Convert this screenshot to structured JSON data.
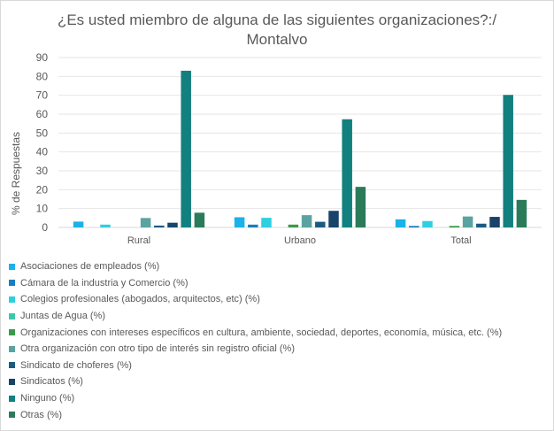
{
  "chart_data": {
    "type": "bar",
    "title_line1": "¿Es usted miembro de alguna de las siguientes organizaciones?:/",
    "title_line2": "Montalvo",
    "xlabel": "",
    "ylabel": "% de Respuestas",
    "ylim": [
      0,
      90
    ],
    "yticks": [
      0,
      10,
      20,
      30,
      40,
      50,
      60,
      70,
      80,
      90
    ],
    "grid": true,
    "legend_position": "bottom",
    "categories": [
      "Rural",
      "Urbano",
      "Total"
    ],
    "series": [
      {
        "name": "Asociaciones de empleados (%)",
        "color": "#1ab2e8",
        "values": [
          3.1,
          5.4,
          4.3
        ]
      },
      {
        "name": "Cámara de la industria y Comercio (%)",
        "color": "#1a7dbf",
        "values": [
          0,
          1.5,
          0.8
        ]
      },
      {
        "name": "Colegios profesionales (abogados, arquitectos, etc) (%)",
        "color": "#2ecfe0",
        "values": [
          1.5,
          5.1,
          3.4
        ]
      },
      {
        "name": "Juntas de Agua (%)",
        "color": "#3cc8a8",
        "values": [
          0,
          0,
          0
        ]
      },
      {
        "name": "Organizaciones con intereses específicos en cultura, ambiente, sociedad, deportes, economía, música, etc. (%)",
        "color": "#3a9a4a",
        "values": [
          0,
          1.5,
          0.8
        ]
      },
      {
        "name": "Otra organización con otro tipo de interés sin registro oficial (%)",
        "color": "#5aa3a0",
        "values": [
          5.0,
          6.5,
          5.8
        ]
      },
      {
        "name": "Sindicato de choferes (%)",
        "color": "#1c5a82",
        "values": [
          1.0,
          3.0,
          2.0
        ]
      },
      {
        "name": "Sindicatos (%)",
        "color": "#18436b",
        "values": [
          2.5,
          8.8,
          5.6
        ]
      },
      {
        "name": "Ninguno (%)",
        "color": "#12807f",
        "values": [
          83.0,
          57.3,
          70.2
        ]
      },
      {
        "name": "Otras (%)",
        "color": "#2a7b5a",
        "values": [
          7.8,
          21.5,
          14.6
        ]
      }
    ]
  }
}
